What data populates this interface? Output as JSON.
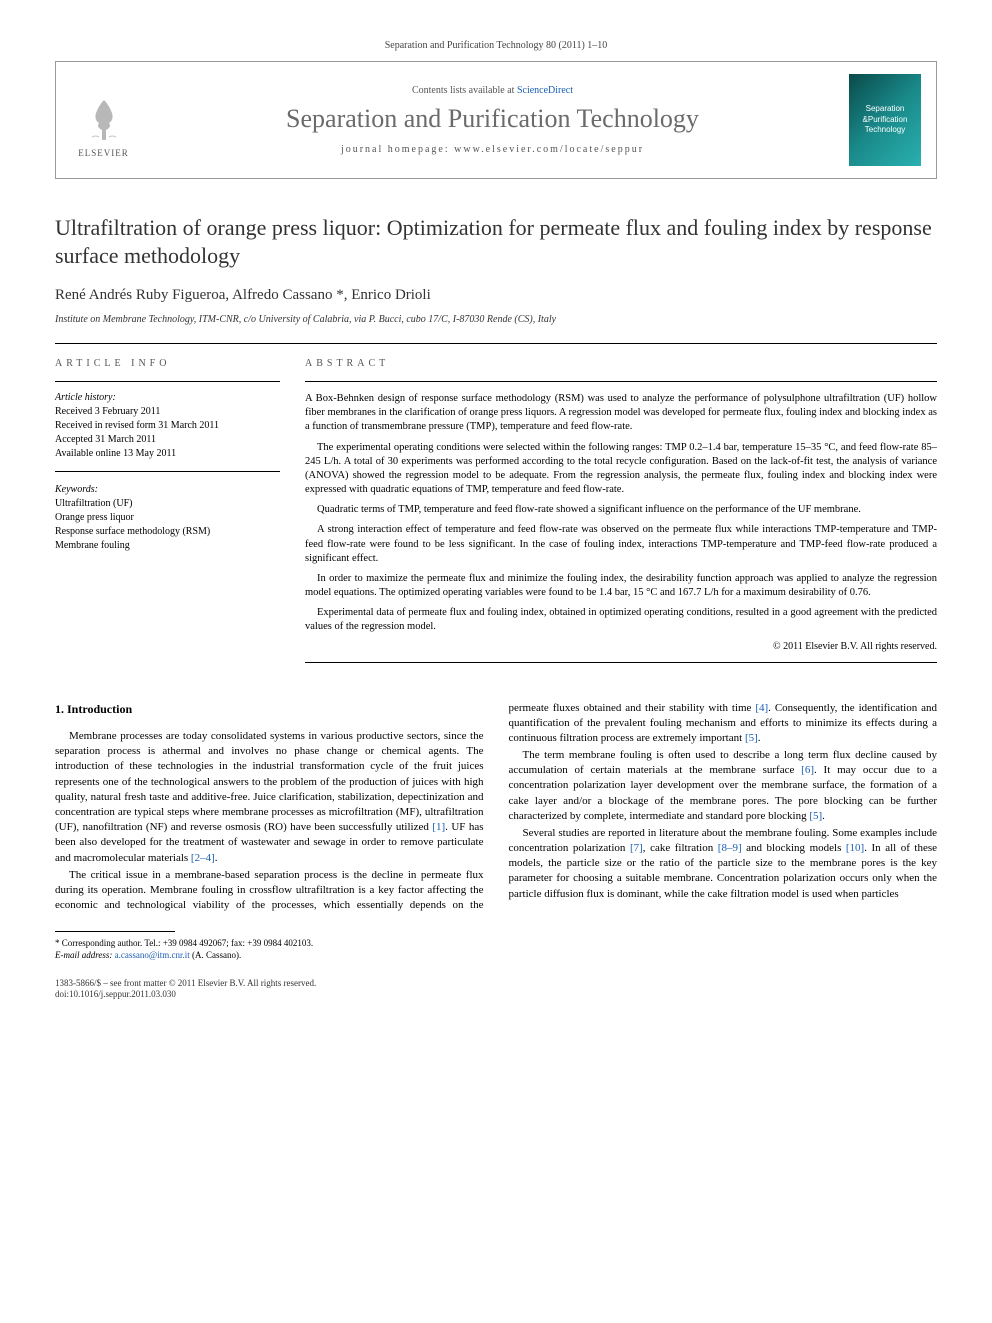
{
  "citation": "Separation and Purification Technology 80 (2011) 1–10",
  "masthead": {
    "contents_prefix": "Contents lists available at ",
    "contents_link": "ScienceDirect",
    "journal_name": "Separation and Purification Technology",
    "homepage_prefix": "journal homepage: ",
    "homepage_url": "www.elsevier.com/locate/seppur",
    "elsevier_label": "ELSEVIER",
    "cover_line1": "Separation",
    "cover_line2": "&Purification",
    "cover_line3": "Technology"
  },
  "title": "Ultrafiltration of orange press liquor: Optimization for permeate flux and fouling index by response surface methodology",
  "authors": "René Andrés Ruby Figueroa, Alfredo Cassano *, Enrico Drioli",
  "affiliation": "Institute on Membrane Technology, ITM-CNR, c/o University of Calabria, via P. Bucci, cubo 17/C, I-87030 Rende (CS), Italy",
  "info": {
    "article_info_heading": "ARTICLE INFO",
    "abstract_heading": "ABSTRACT",
    "history_label": "Article history:",
    "history": [
      "Received 3 February 2011",
      "Received in revised form 31 March 2011",
      "Accepted 31 March 2011",
      "Available online 13 May 2011"
    ],
    "keywords_label": "Keywords:",
    "keywords": [
      "Ultrafiltration (UF)",
      "Orange press liquor",
      "Response surface methodology (RSM)",
      "Membrane fouling"
    ]
  },
  "abstract": {
    "p1": "A Box-Behnken design of response surface methodology (RSM) was used to analyze the performance of polysulphone ultrafiltration (UF) hollow fiber membranes in the clarification of orange press liquors. A regression model was developed for permeate flux, fouling index and blocking index as a function of transmembrane pressure (TMP), temperature and feed flow-rate.",
    "p2": "The experimental operating conditions were selected within the following ranges: TMP 0.2–1.4 bar, temperature 15–35 °C, and feed flow-rate 85–245 L/h. A total of 30 experiments was performed according to the total recycle configuration. Based on the lack-of-fit test, the analysis of variance (ANOVA) showed the regression model to be adequate. From the regression analysis, the permeate flux, fouling index and blocking index were expressed with quadratic equations of TMP, temperature and feed flow-rate.",
    "p3": "Quadratic terms of TMP, temperature and feed flow-rate showed a significant influence on the performance of the UF membrane.",
    "p4": "A strong interaction effect of temperature and feed flow-rate was observed on the permeate flux while interactions TMP-temperature and TMP-feed flow-rate were found to be less significant. In the case of fouling index, interactions TMP-temperature and TMP-feed flow-rate produced a significant effect.",
    "p5": "In order to maximize the permeate flux and minimize the fouling index, the desirability function approach was applied to analyze the regression model equations. The optimized operating variables were found to be 1.4 bar, 15 °C and 167.7 L/h for a maximum desirability of 0.76.",
    "p6": "Experimental data of permeate flux and fouling index, obtained in optimized operating conditions, resulted in a good agreement with the predicted values of the regression model.",
    "copyright": "© 2011 Elsevier B.V. All rights reserved."
  },
  "sections": {
    "intro_heading": "1. Introduction",
    "intro_p1": "Membrane processes are today consolidated systems in various productive sectors, since the separation process is athermal and involves no phase change or chemical agents. The introduction of these technologies in the industrial transformation cycle of the fruit juices represents one of the technological answers to the problem of the production of juices with high quality, natural fresh taste and additive-free. Juice clarification, stabilization, depectinization and concentration are typical steps where membrane processes as microfiltration (MF), ultrafiltration (UF), nanofiltration (NF) and reverse osmosis (RO) have been successfully utilized [1]. UF has been also developed for the treatment of wastewater and sewage in order to remove particulate and macromolecular materials [2–4].",
    "intro_p2": "The critical issue in a membrane-based separation process is the decline in permeate flux during its operation. Membrane fouling in crossflow ultrafiltration is a key factor affecting the economic and technological viability of the processes, which essentially depends on the permeate fluxes obtained and their stability with time [4]. Consequently, the identification and quantification of the prevalent fouling mechanism and efforts to minimize its effects during a continuous filtration process are extremely important [5].",
    "intro_p3": "The term membrane fouling is often used to describe a long term flux decline caused by accumulation of certain materials at the membrane surface [6]. It may occur due to a concentration polarization layer development over the membrane surface, the formation of a cake layer and/or a blockage of the membrane pores. The pore blocking can be further characterized by complete, intermediate and standard pore blocking [5].",
    "intro_p4": "Several studies are reported in literature about the membrane fouling. Some examples include concentration polarization [7], cake filtration [8–9] and blocking models [10]. In all of these models, the particle size or the ratio of the particle size to the membrane pores is the key parameter for choosing a suitable membrane. Concentration polarization occurs only when the particle diffusion flux is dominant, while the cake filtration model is used when particles"
  },
  "footnote": {
    "corr_label": "* Corresponding author. Tel.: +39 0984 492067; fax: +39 0984 402103.",
    "email_label": "E-mail address:",
    "email": "a.cassano@itm.cnr.it",
    "email_name": "(A. Cassano)."
  },
  "bottom": {
    "issn": "1383-5866/$ – see front matter © 2011 Elsevier B.V. All rights reserved.",
    "doi": "doi:10.1016/j.seppur.2011.03.030"
  },
  "colors": {
    "link": "#1a5fb4",
    "heading_gray": "#6b6b6b",
    "cover_bg_start": "#0a4a4a",
    "cover_bg_end": "#2ab0b0"
  }
}
